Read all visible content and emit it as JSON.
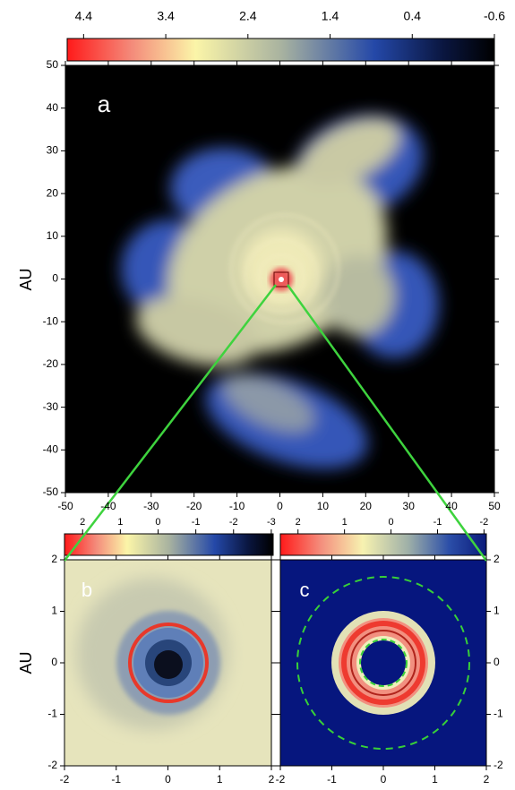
{
  "colorbars": [
    {
      "lim": [
        4.6,
        -0.6
      ],
      "ticks": [
        4.4,
        3.4,
        2.4,
        1.4,
        0.4,
        -0.6
      ]
    },
    {
      "lim": [
        2.48,
        -3.05
      ],
      "ticks": [
        2,
        1,
        0,
        -1,
        -2,
        -3
      ]
    },
    {
      "lim": [
        2.38,
        -2.05
      ],
      "ticks": [
        2,
        1,
        0,
        -1,
        -2
      ]
    }
  ],
  "panels": [
    {
      "label": "a",
      "ylabel": "AU",
      "xlim": [
        -50,
        50
      ],
      "ylim": [
        -50,
        50
      ],
      "xticks": [
        -50,
        -40,
        -30,
        -20,
        -10,
        0,
        10,
        20,
        30,
        40,
        50
      ],
      "yticks": [
        -50,
        -40,
        -30,
        -20,
        -10,
        0,
        10,
        20,
        30,
        40,
        50
      ]
    },
    {
      "label": "b",
      "ylabel": "AU",
      "xlim": [
        -2,
        2
      ],
      "ylim": [
        -2,
        2
      ],
      "xticks": [
        -2,
        -1,
        0,
        1,
        2
      ],
      "yticks": [
        -2,
        -1,
        0,
        1,
        2
      ]
    },
    {
      "label": "c",
      "xlim": [
        -2,
        2
      ],
      "ylim": [
        -2,
        2
      ],
      "xticks": [
        -2,
        -1,
        0,
        1,
        2
      ],
      "yticks": [
        -2,
        -1,
        0,
        1,
        2
      ]
    }
  ]
}
